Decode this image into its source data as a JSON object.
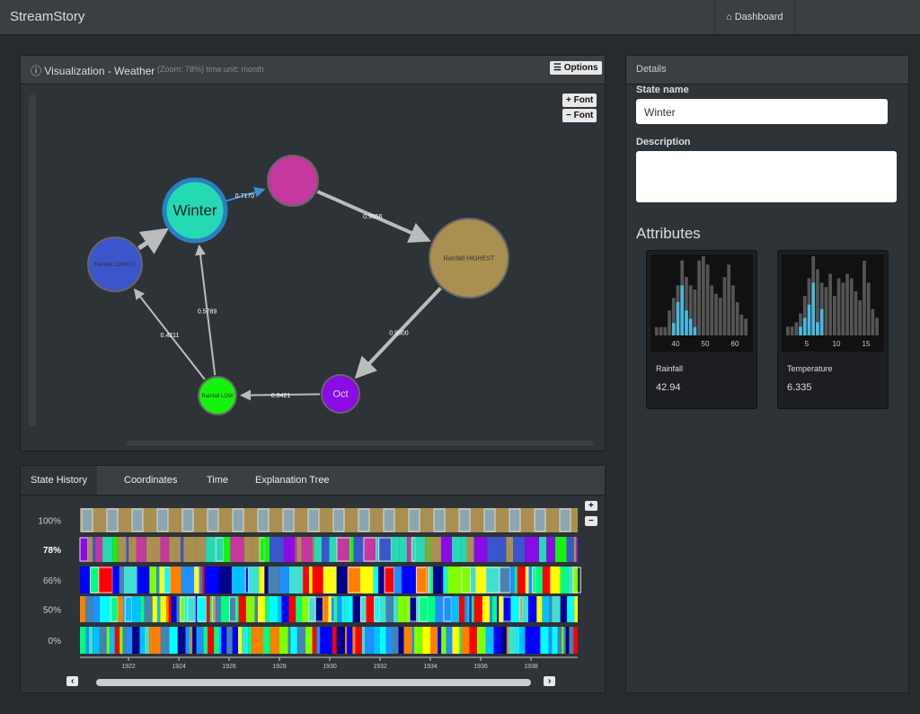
{
  "navbar": {
    "brand": "StreamStory",
    "dashboard": "Dashboard"
  },
  "visualization": {
    "title": "Visualization - Weather",
    "zoom": "(Zoom: 78%)",
    "time_unit": "time unit: month",
    "options": "Options",
    "font_plus": "Font",
    "font_minus": "Font",
    "nodes": [
      {
        "label": "Winter"
      },
      {},
      {
        "label": "Rainfall HIGHEST"
      },
      {
        "label": "Oct"
      },
      {
        "label": "Rainfall LOW"
      },
      {
        "label": "Rainfall LOWEST"
      }
    ],
    "edges": [
      {
        "label": "0.7170"
      },
      {
        "label": "0.9056"
      },
      {
        "label": "0.9500"
      },
      {
        "label": "0.8421"
      },
      {
        "label": "0.5789"
      },
      {
        "label": "0.4211"
      },
      {}
    ]
  },
  "history": {
    "tabs": [
      "State History",
      "Coordinates",
      "Time",
      "Explanation Tree"
    ],
    "levels": [
      "100%",
      "78%",
      "66%",
      "50%",
      "0%"
    ],
    "years": [
      "1922",
      "1924",
      "1926",
      "1928",
      "1930",
      "1932",
      "1934",
      "1936",
      "1938"
    ]
  },
  "details": {
    "header": "Details",
    "state_name_label": "State name",
    "state_name_value": "Winter",
    "description_label": "Description",
    "attributes_title": "Attributes",
    "attributes": [
      {
        "name": "Rainfall",
        "value": "42.94",
        "ticks": [
          "40",
          "50",
          "60"
        ],
        "counts": [
          2,
          2,
          2,
          6,
          9,
          12,
          18,
          14,
          12,
          11,
          18,
          19,
          17,
          12,
          10,
          9,
          14,
          17,
          12,
          8,
          5,
          4
        ],
        "selected": [
          0,
          0,
          0,
          0,
          3,
          8,
          12,
          6,
          4,
          2,
          0,
          0,
          0,
          0,
          0,
          0,
          0,
          0,
          0,
          0,
          0,
          0
        ]
      },
      {
        "name": "Temperature",
        "value": "6.335",
        "ticks": [
          "5",
          "10",
          "15"
        ],
        "counts": [
          2,
          2,
          3,
          5,
          9,
          13,
          18,
          15,
          12,
          11,
          14,
          9,
          13,
          12,
          14,
          13,
          10,
          8,
          17,
          12,
          6,
          4
        ],
        "selected": [
          0,
          0,
          0,
          2,
          4,
          7,
          12,
          3,
          6,
          0,
          0,
          0,
          0,
          0,
          0,
          0,
          0,
          0,
          0,
          0,
          0,
          0
        ]
      }
    ]
  }
}
